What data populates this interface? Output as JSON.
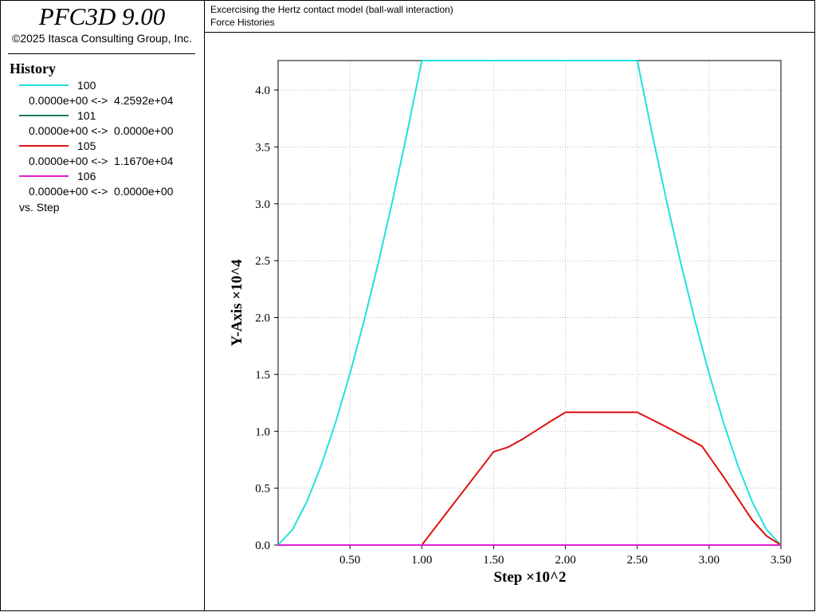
{
  "header": {
    "product": "PFC3D 9.00",
    "copyright": "©2025 Itasca Consulting Group, Inc.",
    "plot_title": "Excercising the Hertz contact model (ball-wall interaction)",
    "plot_subtitle": "Force Histories"
  },
  "legend": {
    "title": "History",
    "footer": "vs. Step"
  },
  "chart_data": {
    "type": "line",
    "x_label": "Step ×10^2",
    "y_label": "Y-Axis ×10^4",
    "xlim": [
      0,
      3.5
    ],
    "ylim": [
      0,
      4.2592
    ],
    "xticks": [
      {
        "value": 0.5,
        "label": "0.50"
      },
      {
        "value": 1.0,
        "label": "1.00"
      },
      {
        "value": 1.5,
        "label": "1.50"
      },
      {
        "value": 2.0,
        "label": "2.00"
      },
      {
        "value": 2.5,
        "label": "2.50"
      },
      {
        "value": 3.0,
        "label": "3.00"
      },
      {
        "value": 3.5,
        "label": "3.50"
      }
    ],
    "yticks": [
      {
        "value": 0,
        "label": "0.0"
      },
      0.5,
      {
        "value": 1,
        "label": "1.0"
      },
      1.5,
      {
        "value": 2,
        "label": "2.0"
      },
      2.5,
      {
        "value": 3,
        "label": "3.0"
      },
      3.5,
      {
        "value": 4,
        "label": "4.0"
      }
    ],
    "grid": true,
    "series": [
      {
        "name": "100",
        "color": "#20e0e0",
        "range": "0.0000e+00 <->  4.2592e+04",
        "x": [
          0,
          0.1,
          0.2,
          0.3,
          0.4,
          0.5,
          0.6,
          0.7,
          0.8,
          0.9,
          1.0,
          2.5,
          2.6,
          2.7,
          2.8,
          2.9,
          3.0,
          3.1,
          3.2,
          3.3,
          3.4,
          3.5
        ],
        "values": [
          0,
          0.135,
          0.381,
          0.7,
          1.077,
          1.506,
          1.98,
          2.494,
          3.047,
          3.637,
          4.2592,
          4.2592,
          3.637,
          3.047,
          2.494,
          1.98,
          1.506,
          1.077,
          0.7,
          0.381,
          0.135,
          0
        ]
      },
      {
        "name": "101",
        "color": "#1e7a50",
        "range": "0.0000e+00 <->  0.0000e+00",
        "x": [
          0,
          3.5
        ],
        "values": [
          0,
          0
        ]
      },
      {
        "name": "105",
        "color": "#e01010",
        "range": "0.0000e+00 <->  1.1670e+04",
        "x": [
          0,
          1.0,
          1.5,
          1.6,
          1.7,
          1.8,
          1.9,
          2.0,
          2.5,
          2.7,
          2.95,
          3.1,
          3.2,
          3.3,
          3.4,
          3.5
        ],
        "values": [
          0,
          0,
          0.82,
          0.86,
          0.93,
          1.01,
          1.09,
          1.167,
          1.167,
          1.04,
          0.87,
          0.6,
          0.41,
          0.22,
          0.08,
          0
        ]
      },
      {
        "name": "106",
        "color": "#e020d0",
        "range": "0.0000e+00 <->  0.0000e+00",
        "x": [
          0,
          3.5
        ],
        "values": [
          0,
          0
        ]
      }
    ]
  }
}
